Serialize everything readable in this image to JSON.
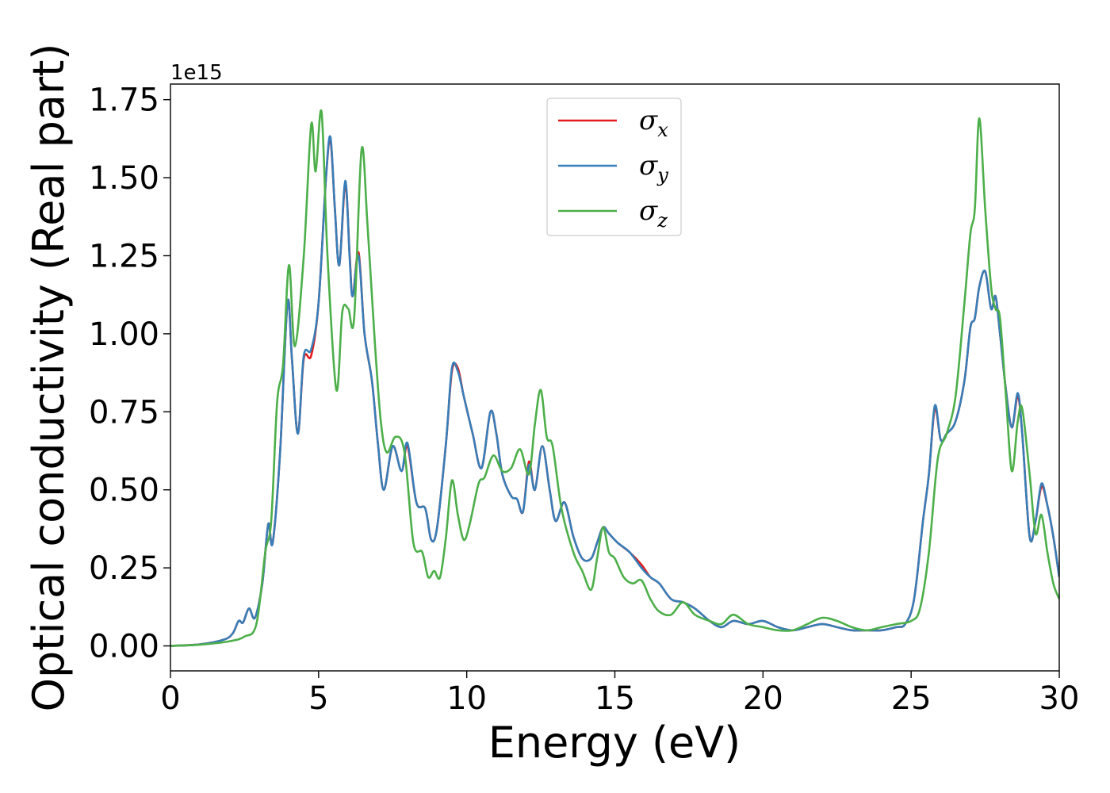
{
  "chart_data": {
    "type": "line",
    "xlabel": "Energy (eV)",
    "ylabel": "Optical conductivity (Real part)",
    "y_offset_label": "1e15",
    "xlim": [
      0,
      30
    ],
    "ylim": [
      -0.08,
      1.8
    ],
    "x_ticks": [
      0,
      5,
      10,
      15,
      20,
      25,
      30
    ],
    "y_ticks": [
      0.0,
      0.25,
      0.5,
      0.75,
      1.0,
      1.25,
      1.5,
      1.75
    ],
    "y_tick_labels": [
      "0.00",
      "0.25",
      "0.50",
      "0.75",
      "1.00",
      "1.25",
      "1.50",
      "1.75"
    ],
    "grid": false,
    "legend_position": "top-center",
    "series": [
      {
        "name": "σx",
        "symbol": "σ",
        "subscript": "x",
        "color": "#e41a1c",
        "x": [
          0,
          1,
          1.8,
          2.1,
          2.3,
          2.45,
          2.65,
          2.85,
          3.1,
          3.3,
          3.45,
          3.7,
          3.95,
          4.1,
          4.3,
          4.5,
          4.75,
          5.0,
          5.25,
          5.4,
          5.55,
          5.7,
          5.9,
          6.05,
          6.15,
          6.35,
          6.55,
          6.8,
          7.0,
          7.2,
          7.5,
          7.8,
          8.0,
          8.3,
          8.6,
          8.8,
          9.0,
          9.3,
          9.5,
          9.7,
          9.9,
          10.2,
          10.5,
          10.8,
          11.0,
          11.2,
          11.5,
          11.7,
          11.9,
          12.1,
          12.3,
          12.55,
          12.8,
          13.0,
          13.3,
          13.6,
          13.9,
          14.2,
          14.4,
          14.6,
          14.8,
          15.1,
          15.5,
          15.9,
          16.2,
          16.5,
          16.9,
          17.3,
          17.7,
          18.2,
          18.6,
          19.0,
          19.5,
          20.0,
          20.5,
          21.0,
          21.5,
          22.0,
          22.5,
          23.0,
          23.5,
          24.0,
          24.5,
          24.8,
          25.1,
          25.4,
          25.6,
          25.8,
          26.0,
          26.2,
          26.5,
          26.8,
          27.0,
          27.15,
          27.3,
          27.5,
          27.7,
          27.85,
          28.0,
          28.2,
          28.4,
          28.6,
          28.75,
          29.0,
          29.2,
          29.4,
          29.6,
          29.8,
          30.0
        ],
        "y": [
          0,
          0.005,
          0.02,
          0.04,
          0.08,
          0.075,
          0.12,
          0.09,
          0.2,
          0.39,
          0.33,
          0.62,
          1.1,
          0.92,
          0.68,
          0.92,
          0.93,
          1.1,
          1.5,
          1.62,
          1.4,
          1.22,
          1.48,
          1.25,
          1.12,
          1.26,
          1.0,
          0.85,
          0.65,
          0.5,
          0.64,
          0.56,
          0.64,
          0.46,
          0.44,
          0.34,
          0.38,
          0.65,
          0.88,
          0.89,
          0.8,
          0.68,
          0.57,
          0.75,
          0.68,
          0.55,
          0.48,
          0.47,
          0.43,
          0.59,
          0.5,
          0.64,
          0.5,
          0.4,
          0.46,
          0.35,
          0.28,
          0.28,
          0.33,
          0.38,
          0.36,
          0.33,
          0.3,
          0.26,
          0.22,
          0.2,
          0.15,
          0.14,
          0.12,
          0.08,
          0.06,
          0.08,
          0.07,
          0.08,
          0.06,
          0.05,
          0.06,
          0.07,
          0.06,
          0.05,
          0.05,
          0.05,
          0.06,
          0.07,
          0.15,
          0.4,
          0.55,
          0.76,
          0.66,
          0.68,
          0.72,
          0.85,
          1.02,
          1.05,
          1.15,
          1.2,
          1.08,
          1.12,
          1.0,
          0.82,
          0.7,
          0.8,
          0.68,
          0.35,
          0.4,
          0.51,
          0.45,
          0.35,
          0.22
        ]
      },
      {
        "name": "σy",
        "symbol": "σ",
        "subscript": "y",
        "color": "#377eb8",
        "x": [
          0,
          1,
          1.8,
          2.1,
          2.3,
          2.45,
          2.65,
          2.85,
          3.1,
          3.3,
          3.45,
          3.7,
          3.95,
          4.1,
          4.3,
          4.5,
          4.75,
          5.0,
          5.25,
          5.4,
          5.55,
          5.7,
          5.9,
          6.05,
          6.15,
          6.35,
          6.55,
          6.8,
          7.0,
          7.2,
          7.5,
          7.8,
          8.0,
          8.3,
          8.6,
          8.8,
          9.0,
          9.3,
          9.5,
          9.7,
          9.9,
          10.2,
          10.5,
          10.8,
          11.0,
          11.2,
          11.5,
          11.7,
          11.9,
          12.1,
          12.3,
          12.55,
          12.8,
          13.0,
          13.3,
          13.6,
          13.9,
          14.2,
          14.4,
          14.6,
          14.8,
          15.1,
          15.5,
          15.9,
          16.2,
          16.5,
          16.9,
          17.3,
          17.7,
          18.2,
          18.6,
          19.0,
          19.5,
          20.0,
          20.5,
          21.0,
          21.5,
          22.0,
          22.5,
          23.0,
          23.5,
          24.0,
          24.5,
          24.8,
          25.1,
          25.4,
          25.6,
          25.8,
          26.0,
          26.2,
          26.5,
          26.8,
          27.0,
          27.15,
          27.3,
          27.5,
          27.7,
          27.85,
          28.0,
          28.2,
          28.4,
          28.6,
          28.75,
          29.0,
          29.2,
          29.4,
          29.6,
          29.8,
          30.0
        ],
        "y": [
          0,
          0.005,
          0.02,
          0.04,
          0.08,
          0.075,
          0.12,
          0.09,
          0.2,
          0.39,
          0.33,
          0.62,
          1.1,
          0.92,
          0.68,
          0.93,
          0.95,
          1.1,
          1.5,
          1.63,
          1.4,
          1.22,
          1.49,
          1.24,
          1.12,
          1.25,
          1.0,
          0.85,
          0.65,
          0.5,
          0.64,
          0.56,
          0.65,
          0.46,
          0.44,
          0.34,
          0.38,
          0.65,
          0.89,
          0.88,
          0.8,
          0.68,
          0.57,
          0.75,
          0.68,
          0.55,
          0.48,
          0.47,
          0.43,
          0.58,
          0.5,
          0.64,
          0.5,
          0.4,
          0.46,
          0.35,
          0.28,
          0.28,
          0.33,
          0.38,
          0.36,
          0.33,
          0.3,
          0.25,
          0.22,
          0.2,
          0.15,
          0.14,
          0.12,
          0.08,
          0.06,
          0.08,
          0.07,
          0.08,
          0.06,
          0.05,
          0.06,
          0.07,
          0.06,
          0.05,
          0.05,
          0.05,
          0.06,
          0.07,
          0.15,
          0.4,
          0.55,
          0.77,
          0.66,
          0.68,
          0.72,
          0.85,
          1.02,
          1.05,
          1.15,
          1.2,
          1.08,
          1.12,
          1.0,
          0.82,
          0.7,
          0.81,
          0.68,
          0.35,
          0.4,
          0.52,
          0.45,
          0.35,
          0.22
        ]
      },
      {
        "name": "σz",
        "symbol": "σ",
        "subscript": "z",
        "color": "#4daf4a",
        "x": [
          0,
          1,
          2.0,
          2.5,
          2.9,
          3.2,
          3.4,
          3.6,
          3.8,
          4.0,
          4.2,
          4.5,
          4.75,
          4.9,
          5.1,
          5.3,
          5.6,
          5.8,
          6.0,
          6.2,
          6.45,
          6.65,
          6.9,
          7.1,
          7.3,
          7.6,
          7.9,
          8.2,
          8.5,
          8.7,
          8.9,
          9.1,
          9.3,
          9.5,
          9.7,
          9.9,
          10.1,
          10.4,
          10.6,
          10.9,
          11.2,
          11.5,
          11.8,
          12.1,
          12.3,
          12.5,
          12.7,
          12.9,
          13.2,
          13.6,
          13.9,
          14.2,
          14.4,
          14.6,
          14.8,
          15.0,
          15.3,
          15.6,
          15.9,
          16.2,
          16.5,
          16.9,
          17.3,
          17.7,
          18.2,
          18.6,
          19.0,
          19.5,
          20.0,
          20.5,
          21.0,
          21.5,
          22.0,
          22.5,
          23.0,
          23.5,
          24.0,
          24.5,
          25.0,
          25.3,
          25.6,
          25.9,
          26.2,
          26.5,
          26.8,
          27.0,
          27.15,
          27.3,
          27.5,
          27.7,
          27.85,
          28.0,
          28.2,
          28.4,
          28.6,
          28.75,
          29.0,
          29.2,
          29.4,
          29.6,
          29.8,
          30.0
        ],
        "y": [
          0,
          0.004,
          0.015,
          0.03,
          0.07,
          0.3,
          0.4,
          0.78,
          0.9,
          1.22,
          0.96,
          1.25,
          1.67,
          1.52,
          1.71,
          1.25,
          0.82,
          1.07,
          1.08,
          1.05,
          1.59,
          1.35,
          0.97,
          0.72,
          0.62,
          0.67,
          0.62,
          0.33,
          0.3,
          0.22,
          0.24,
          0.22,
          0.35,
          0.53,
          0.42,
          0.34,
          0.39,
          0.52,
          0.54,
          0.61,
          0.56,
          0.57,
          0.63,
          0.55,
          0.71,
          0.82,
          0.67,
          0.64,
          0.44,
          0.3,
          0.24,
          0.18,
          0.28,
          0.38,
          0.3,
          0.28,
          0.22,
          0.2,
          0.21,
          0.15,
          0.11,
          0.1,
          0.14,
          0.1,
          0.08,
          0.07,
          0.1,
          0.07,
          0.06,
          0.05,
          0.05,
          0.07,
          0.09,
          0.08,
          0.06,
          0.05,
          0.06,
          0.07,
          0.08,
          0.12,
          0.3,
          0.6,
          0.68,
          0.8,
          1.1,
          1.32,
          1.4,
          1.69,
          1.4,
          1.15,
          1.08,
          1.05,
          0.8,
          0.56,
          0.72,
          0.76,
          0.55,
          0.36,
          0.42,
          0.3,
          0.2,
          0.15
        ]
      }
    ]
  }
}
